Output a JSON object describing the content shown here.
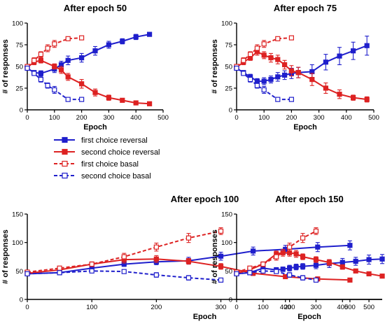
{
  "legend": [
    {
      "label": "first choice reversal",
      "color": "#1f1fcc",
      "filled": true,
      "dashed": false
    },
    {
      "label": "second choice reversal",
      "color": "#dd2222",
      "filled": true,
      "dashed": false
    },
    {
      "label": "first choice basal",
      "color": "#dd2222",
      "filled": false,
      "dashed": true
    },
    {
      "label": "second choice basal",
      "color": "#1f1fcc",
      "filled": false,
      "dashed": true
    }
  ],
  "chart_data": [
    {
      "type": "line",
      "title": "After epoch 50",
      "xlabel": "Epoch",
      "ylabel": "# of responses",
      "xlim": [
        0,
        500
      ],
      "ylim": [
        0,
        100
      ],
      "xticks": [
        0,
        100,
        200,
        300,
        400,
        500
      ],
      "yticks": [
        0,
        25,
        50,
        75,
        100
      ],
      "series": [
        {
          "name": "first choice reversal",
          "x": [
            0,
            25,
            50,
            100,
            125,
            150,
            200,
            250,
            300,
            350,
            400,
            450
          ],
          "y": [
            48,
            43,
            42,
            47,
            52,
            57,
            60,
            68,
            75,
            79,
            84,
            87
          ],
          "err": [
            2,
            2,
            3,
            4,
            4,
            5,
            5,
            5,
            4,
            3,
            3,
            1
          ]
        },
        {
          "name": "second choice reversal",
          "x": [
            0,
            25,
            50,
            100,
            125,
            150,
            200,
            250,
            300,
            350,
            400,
            450
          ],
          "y": [
            49,
            55,
            57,
            50,
            46,
            38,
            30,
            20,
            14,
            11,
            8,
            7
          ],
          "err": [
            2,
            3,
            3,
            3,
            4,
            4,
            5,
            4,
            3,
            2,
            2,
            1
          ]
        },
        {
          "name": "first choice basal",
          "x": [
            0,
            25,
            50,
            75,
            100,
            150,
            200
          ],
          "y": [
            50,
            57,
            64,
            71,
            76,
            82,
            83
          ],
          "err": [
            2,
            3,
            3,
            4,
            4,
            2,
            1
          ]
        },
        {
          "name": "second choice basal",
          "x": [
            0,
            25,
            50,
            75,
            100,
            150,
            200
          ],
          "y": [
            48,
            42,
            35,
            28,
            23,
            12,
            12
          ],
          "err": [
            2,
            2,
            3,
            3,
            4,
            2,
            1
          ]
        }
      ]
    },
    {
      "type": "line",
      "title": "After epoch 75",
      "xlabel": "Epoch",
      "ylabel": "# of responses",
      "xlim": [
        0,
        500
      ],
      "ylim": [
        0,
        100
      ],
      "xticks": [
        0,
        100,
        200,
        300,
        400,
        500
      ],
      "yticks": [
        0,
        25,
        50,
        75,
        100
      ],
      "series": [
        {
          "name": "first choice reversal",
          "x": [
            0,
            25,
            50,
            75,
            100,
            125,
            150,
            175,
            200,
            225,
            275,
            325,
            375,
            425,
            475
          ],
          "y": [
            48,
            43,
            38,
            33,
            33,
            35,
            38,
            40,
            42,
            43,
            44,
            55,
            62,
            68,
            74
          ],
          "err": [
            2,
            2,
            3,
            3,
            4,
            4,
            5,
            5,
            6,
            6,
            8,
            9,
            10,
            10,
            11
          ]
        },
        {
          "name": "second choice reversal",
          "x": [
            0,
            25,
            50,
            75,
            100,
            125,
            150,
            175,
            200,
            225,
            275,
            325,
            375,
            425,
            475
          ],
          "y": [
            49,
            55,
            60,
            67,
            63,
            60,
            58,
            52,
            45,
            43,
            35,
            25,
            18,
            14,
            12
          ],
          "err": [
            2,
            3,
            3,
            4,
            4,
            5,
            5,
            5,
            6,
            6,
            7,
            6,
            5,
            3,
            3
          ]
        },
        {
          "name": "first choice basal",
          "x": [
            0,
            25,
            50,
            75,
            100,
            150,
            200
          ],
          "y": [
            50,
            57,
            64,
            71,
            76,
            82,
            83
          ],
          "err": [
            2,
            3,
            3,
            4,
            4,
            2,
            1
          ]
        },
        {
          "name": "second choice basal",
          "x": [
            0,
            25,
            50,
            75,
            100,
            150,
            200
          ],
          "y": [
            48,
            42,
            35,
            28,
            23,
            12,
            12
          ],
          "err": [
            2,
            2,
            3,
            3,
            4,
            2,
            1
          ]
        }
      ]
    },
    {
      "type": "line",
      "title": "After epoch 100",
      "xlabel": "Epoch",
      "ylabel": "# of responses",
      "xlim": [
        0,
        550
      ],
      "ylim": [
        0,
        150
      ],
      "xticks": [
        0,
        100,
        200,
        300,
        400,
        500
      ],
      "yticks": [
        0,
        50,
        100,
        150
      ],
      "series": [
        {
          "name": "first choice reversal",
          "x": [
            0,
            50,
            100,
            150,
            200,
            250,
            300,
            350,
            400,
            450,
            500
          ],
          "y": [
            45,
            47,
            55,
            62,
            66,
            68,
            76,
            85,
            88,
            92,
            95
          ],
          "err": [
            2,
            2,
            3,
            4,
            5,
            6,
            7,
            7,
            7,
            8,
            8
          ]
        },
        {
          "name": "second choice reversal",
          "x": [
            0,
            50,
            100,
            150,
            200,
            250,
            300,
            350,
            400,
            450,
            500
          ],
          "y": [
            46,
            52,
            62,
            70,
            71,
            67,
            58,
            46,
            40,
            36,
            34
          ],
          "err": [
            2,
            2,
            3,
            6,
            6,
            5,
            5,
            4,
            3,
            2,
            2
          ]
        },
        {
          "name": "first choice basal",
          "x": [
            0,
            50,
            100,
            150,
            200,
            250,
            300
          ],
          "y": [
            48,
            55,
            62,
            75,
            92,
            108,
            120
          ],
          "err": [
            2,
            3,
            4,
            6,
            7,
            8,
            6
          ]
        },
        {
          "name": "second choice basal",
          "x": [
            0,
            50,
            100,
            150,
            200,
            250,
            300
          ],
          "y": [
            45,
            47,
            50,
            49,
            43,
            38,
            34
          ],
          "err": [
            2,
            2,
            3,
            3,
            4,
            4,
            3
          ]
        }
      ]
    },
    {
      "type": "line",
      "title": "After epoch 150",
      "xlabel": "Epoch",
      "ylabel": "# of responses",
      "xlim": [
        0,
        550
      ],
      "ylim": [
        0,
        150
      ],
      "xticks": [
        0,
        100,
        200,
        300,
        400,
        500
      ],
      "yticks": [
        0,
        50,
        100,
        150
      ],
      "series": [
        {
          "name": "first choice reversal",
          "x": [
            0,
            50,
            100,
            150,
            175,
            200,
            225,
            250,
            300,
            350,
            400,
            450,
            500,
            550
          ],
          "y": [
            45,
            47,
            55,
            52,
            53,
            55,
            57,
            58,
            60,
            63,
            65,
            67,
            70,
            71
          ],
          "err": [
            2,
            2,
            3,
            4,
            4,
            5,
            5,
            5,
            6,
            7,
            7,
            7,
            8,
            8
          ]
        },
        {
          "name": "second choice reversal",
          "x": [
            0,
            50,
            100,
            150,
            175,
            200,
            225,
            250,
            300,
            350,
            400,
            450,
            500,
            550
          ],
          "y": [
            46,
            52,
            62,
            80,
            82,
            82,
            80,
            75,
            70,
            65,
            57,
            50,
            45,
            41
          ],
          "err": [
            2,
            2,
            3,
            5,
            6,
            6,
            6,
            5,
            5,
            5,
            4,
            3,
            3,
            2
          ]
        },
        {
          "name": "first choice basal",
          "x": [
            0,
            50,
            100,
            150,
            200,
            250,
            300
          ],
          "y": [
            48,
            55,
            62,
            75,
            92,
            108,
            120
          ],
          "err": [
            2,
            3,
            4,
            6,
            7,
            8,
            6
          ]
        },
        {
          "name": "second choice basal",
          "x": [
            0,
            50,
            100,
            150,
            200,
            250,
            300
          ],
          "y": [
            45,
            47,
            50,
            49,
            43,
            38,
            34
          ],
          "err": [
            2,
            2,
            3,
            3,
            4,
            4,
            3
          ]
        }
      ]
    }
  ]
}
